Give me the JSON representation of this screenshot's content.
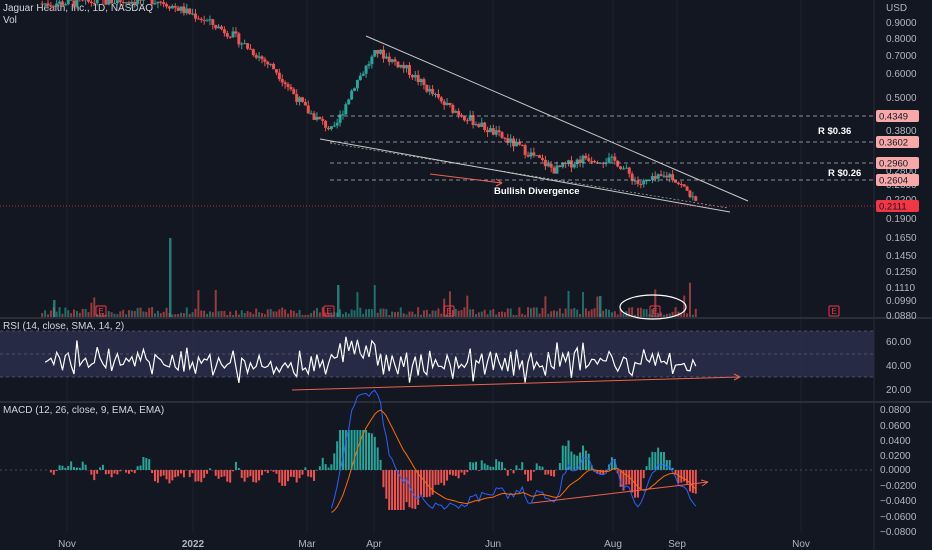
{
  "header": {
    "title": "Jaguar Health, Inc., 1D, NASDAQ",
    "vol_label": "Vol",
    "currency": "USD"
  },
  "rsi_panel": {
    "label": "RSI (14, close, SMA, 14, 2)"
  },
  "macd_panel": {
    "label": "MACD (12, 26, close, 9, EMA, EMA)"
  },
  "annotations": {
    "bullish_divergence": "Bullish Divergence",
    "r036": "R $0.36",
    "r026": "R $0.26",
    "earnings_badge": "E"
  },
  "colors": {
    "background": "#131722",
    "up": "#26a69a",
    "down": "#ef5350",
    "rsi_band": "#2a2e4a",
    "trendline": "#c8c8c8",
    "arrow": "#f0614d",
    "macd_line": "#2962ff",
    "signal_line": "#ff6d00"
  },
  "chart_data": [
    {
      "type": "candlestick",
      "title": "Jaguar Health, Inc., 1D, NASDAQ",
      "x_ticks": [
        "Nov",
        "2022",
        "Mar",
        "Apr",
        "Jun",
        "Aug",
        "Sep",
        "Nov"
      ],
      "y_ticks": [
        "0.9000",
        "0.8000",
        "0.7000",
        "0.6000",
        "0.5000",
        "0.3800",
        "0.3200",
        "0.2800",
        "0.2600",
        "0.2200",
        "0.1900",
        "0.1650",
        "0.1450",
        "0.1250",
        "0.1110",
        "0.0990",
        "0.0880"
      ],
      "price_tags": [
        {
          "value": "0.4349",
          "color": "#f7a9a9"
        },
        {
          "value": "0.3602",
          "color": "#f7a9a9"
        },
        {
          "value": "0.2960",
          "color": "#f7a9a9"
        },
        {
          "value": "0.2604",
          "color": "#f7a9a9"
        },
        {
          "value": "0.2111",
          "color": "#f23645"
        }
      ],
      "horizontal_levels": [
        0.4349,
        0.3602,
        0.296,
        0.2604
      ],
      "close_path": [
        {
          "x": "Oct 20",
          "y": 1.05
        },
        {
          "x": "Dec 15",
          "y": 1.08
        },
        {
          "x": "Jan 3",
          "y": 0.95
        },
        {
          "x": "Jan 20",
          "y": 0.82
        },
        {
          "x": "Feb 10",
          "y": 0.62
        },
        {
          "x": "Feb 25",
          "y": 0.45
        },
        {
          "x": "Mar 10",
          "y": 0.38
        },
        {
          "x": "Mar 20",
          "y": 0.55
        },
        {
          "x": "Mar 31",
          "y": 0.72
        },
        {
          "x": "Apr 15",
          "y": 0.62
        },
        {
          "x": "May 1",
          "y": 0.48
        },
        {
          "x": "May 20",
          "y": 0.4
        },
        {
          "x": "Jun 10",
          "y": 0.33
        },
        {
          "x": "Jun 25",
          "y": 0.28
        },
        {
          "x": "Jul 10",
          "y": 0.31
        },
        {
          "x": "Jul 25",
          "y": 0.3
        },
        {
          "x": "Aug 5",
          "y": 0.25
        },
        {
          "x": "Aug 20",
          "y": 0.27
        },
        {
          "x": "Aug 30",
          "y": 0.23
        },
        {
          "x": "Sep 2",
          "y": 0.211
        }
      ],
      "last_price": 0.2111
    },
    {
      "type": "line",
      "title": "RSI (14, close, SMA, 14, 2)",
      "y_ticks": [
        "60.00",
        "40.00",
        "20.00"
      ],
      "band": [
        30,
        70
      ]
    },
    {
      "type": "bar",
      "title": "MACD (12, 26, close, 9, EMA, EMA)",
      "y_ticks": [
        "0.0800",
        "0.0600",
        "0.0400",
        "0.0200",
        "0.0000",
        "−0.0200",
        "−0.0400",
        "−0.0600",
        "−0.0800"
      ]
    }
  ]
}
